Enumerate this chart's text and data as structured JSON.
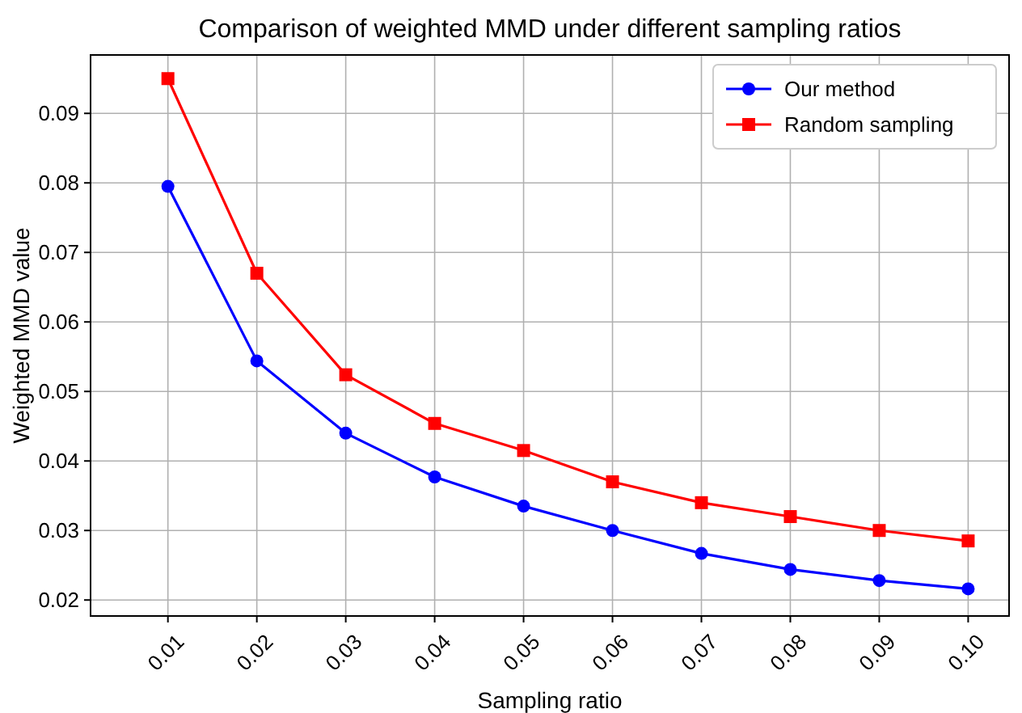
{
  "chart_data": {
    "type": "line",
    "title": "Comparison of weighted MMD under different sampling ratios",
    "xlabel": "Sampling ratio",
    "ylabel": "Weighted MMD value",
    "x": [
      0.01,
      0.02,
      0.03,
      0.04,
      0.05,
      0.06,
      0.07,
      0.08,
      0.09,
      0.1
    ],
    "series": [
      {
        "name": "Our method",
        "color": "#0000ff",
        "marker": "circle",
        "values": [
          0.0795,
          0.0544,
          0.044,
          0.0377,
          0.0335,
          0.03,
          0.0267,
          0.0244,
          0.0228,
          0.0216
        ]
      },
      {
        "name": "Random sampling",
        "color": "#ff0000",
        "marker": "square",
        "values": [
          0.095,
          0.067,
          0.0524,
          0.0454,
          0.0415,
          0.037,
          0.034,
          0.032,
          0.03,
          0.0285
        ]
      }
    ],
    "xlim": [
      0.0013,
      0.1046
    ],
    "ylim": [
      0.0177,
      0.0984
    ],
    "xticks": [
      {
        "value": 0.01,
        "label": "0.01"
      },
      {
        "value": 0.02,
        "label": "0.02"
      },
      {
        "value": 0.03,
        "label": "0.03"
      },
      {
        "value": 0.04,
        "label": "0.04"
      },
      {
        "value": 0.05,
        "label": "0.05"
      },
      {
        "value": 0.06,
        "label": "0.06"
      },
      {
        "value": 0.07,
        "label": "0.07"
      },
      {
        "value": 0.08,
        "label": "0.08"
      },
      {
        "value": 0.09,
        "label": "0.09"
      },
      {
        "value": 0.1,
        "label": "0.10"
      }
    ],
    "yticks": [
      {
        "value": 0.02,
        "label": "0.02"
      },
      {
        "value": 0.03,
        "label": "0.03"
      },
      {
        "value": 0.04,
        "label": "0.04"
      },
      {
        "value": 0.05,
        "label": "0.05"
      },
      {
        "value": 0.06,
        "label": "0.06"
      },
      {
        "value": 0.07,
        "label": "0.07"
      },
      {
        "value": 0.08,
        "label": "0.08"
      },
      {
        "value": 0.09,
        "label": "0.09"
      }
    ],
    "grid": true,
    "legend": "top right",
    "line_style": "solid"
  }
}
